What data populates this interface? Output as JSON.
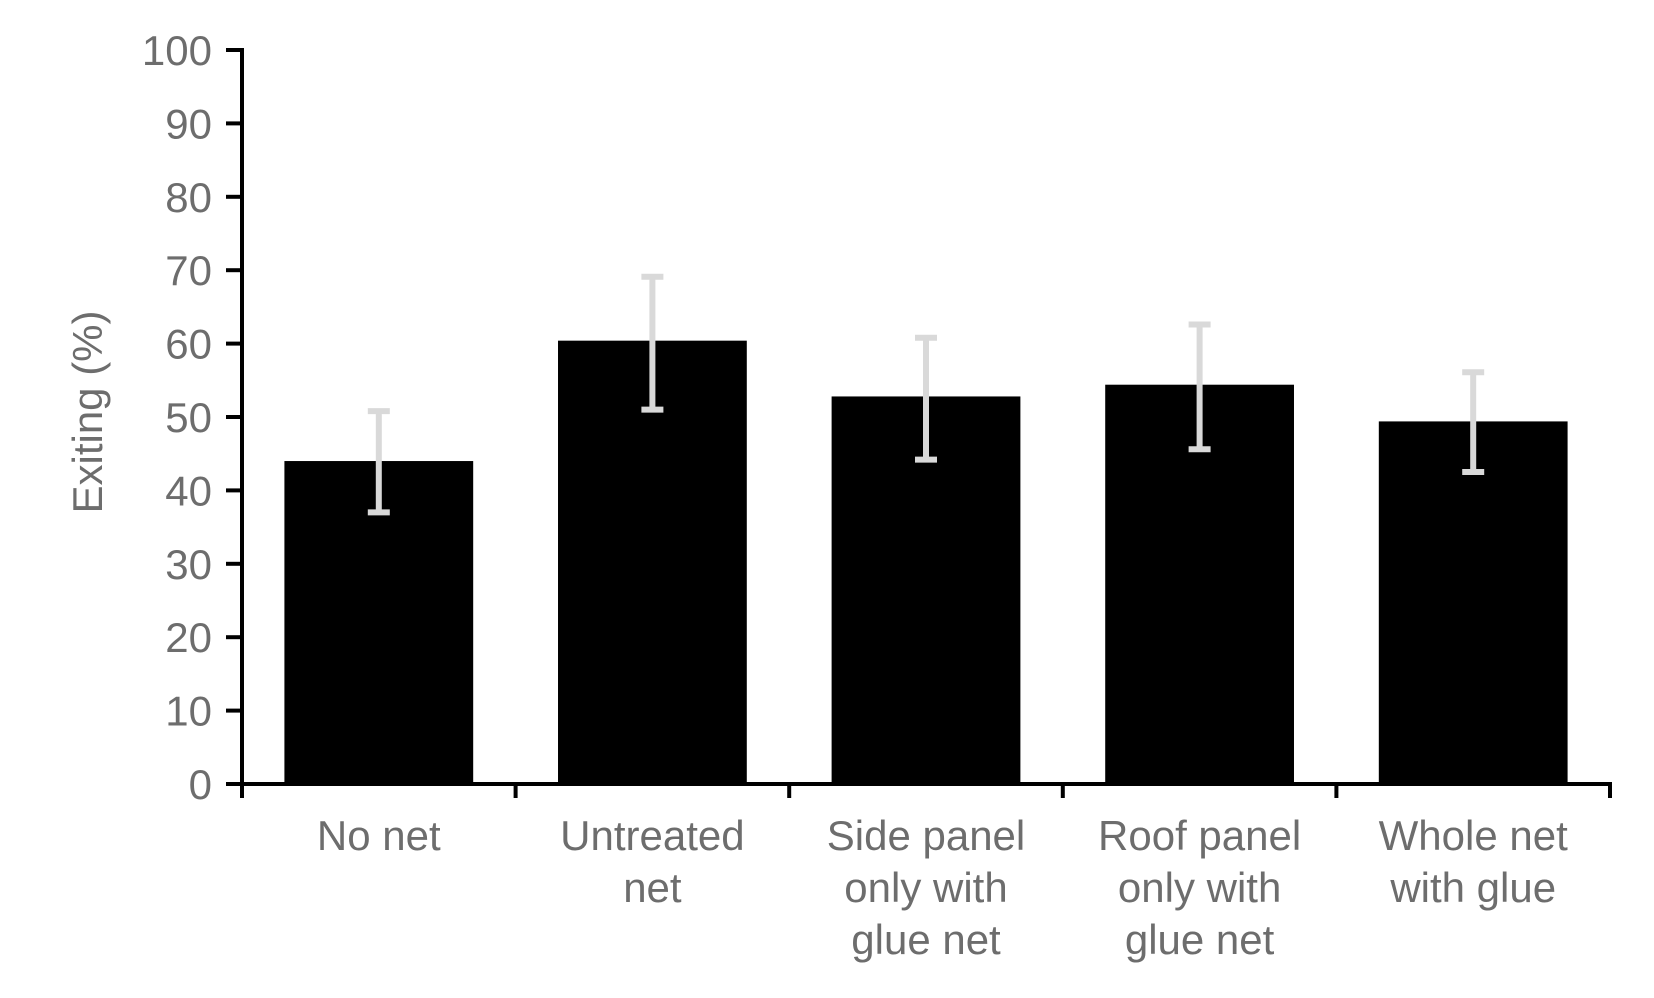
{
  "chart_data": {
    "type": "bar",
    "title": "",
    "xlabel": "",
    "ylabel": "Exiting (%)",
    "ylim": [
      0,
      100
    ],
    "yticks": [
      0,
      10,
      20,
      30,
      40,
      50,
      60,
      70,
      80,
      90,
      100
    ],
    "categories": [
      [
        "No net"
      ],
      [
        "Untreated",
        "net"
      ],
      [
        "Side panel",
        "only with",
        "glue net"
      ],
      [
        "Roof panel",
        "only with",
        "glue net"
      ],
      [
        "Whole net",
        "with glue"
      ]
    ],
    "series": [
      {
        "values": [
          44,
          60.4,
          52.8,
          54.4,
          49.4
        ],
        "error_low": [
          37,
          51,
          44.2,
          45.6,
          42.5
        ],
        "error_high": [
          50.8,
          69.1,
          60.8,
          62.6,
          56.1
        ]
      }
    ],
    "colors": {
      "bar": "#000000",
      "error_bar": "#d9d9d9",
      "tick_label": "#6d6d6d",
      "axis": "#000000"
    },
    "grid": false,
    "legend": "none"
  }
}
